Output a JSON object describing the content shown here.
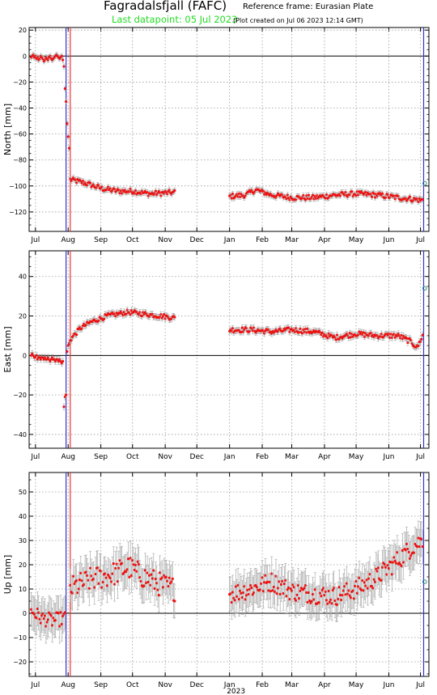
{
  "header": {
    "title": "Fagradalsfjall (FAFC)",
    "reference_frame": "Reference frame: Eurasian Plate",
    "last_datapoint": "Last datapoint: 05 Jul 2023",
    "plot_created": "(Plot created on Jul 06 2023 12:14 GMT)"
  },
  "colors": {
    "data_point": "#ee1111",
    "error_bar": "#aaaaaa",
    "blue_line": "#3333cc",
    "red_line": "#ee3333",
    "last_point": "#2e8b8b",
    "last_datapoint_text": "#22dd22",
    "grid": "#999999"
  },
  "chart_data": {
    "type": "scatter",
    "grid": true,
    "x_year_label": "2023",
    "months": [
      "Jul",
      "Aug",
      "Sep",
      "Oct",
      "Nov",
      "Dec",
      "Jan",
      "Feb",
      "Mar",
      "Apr",
      "May",
      "Jun",
      "Jul"
    ],
    "x_range": [
      "2022-06-25",
      "2023-07-09"
    ],
    "vertical_lines": [
      {
        "date": "2022-07-30",
        "color": "blue"
      },
      {
        "date": "2022-08-03",
        "color": "red"
      },
      {
        "date": "2023-07-04",
        "color": "blue"
      }
    ],
    "panels": [
      {
        "ylabel": "North [mm]",
        "ylim": [
          -135,
          22
        ],
        "yticks": [
          20,
          0,
          -20,
          -40,
          -60,
          -80,
          -100,
          -120
        ],
        "error": 2,
        "last_point": {
          "date": "2023-07-05",
          "value": -98
        },
        "segments": [
          {
            "start": "2022-06-27",
            "end": "2022-07-26",
            "values": [
              -1,
              0,
              1,
              -1,
              0,
              -2,
              -1,
              -3,
              -2,
              0,
              -1,
              -2,
              -4,
              -3,
              -1,
              -2,
              -3,
              -1,
              0,
              -2,
              -3,
              -2,
              -1,
              0,
              1,
              0,
              -1,
              -2,
              -1,
              0
            ]
          },
          {
            "start": "2022-07-27",
            "end": "2022-08-02",
            "values": [
              -3,
              -8,
              -25,
              -35,
              -52,
              -62,
              -71
            ]
          },
          {
            "start": "2022-08-03",
            "end": "2022-11-10",
            "interpolate": [
              [
                0,
                -95
              ],
              [
                15,
                -98
              ],
              [
                30,
                -102
              ],
              [
                45,
                -104
              ],
              [
                60,
                -104
              ],
              [
                75,
                -106
              ],
              [
                99,
                -105
              ]
            ],
            "noise": 2
          },
          {
            "start": "2023-01-01",
            "end": "2023-07-03",
            "interpolate": [
              [
                0,
                -108
              ],
              [
                15,
                -107
              ],
              [
                25,
                -103
              ],
              [
                40,
                -107
              ],
              [
                60,
                -109
              ],
              [
                80,
                -109
              ],
              [
                100,
                -107
              ],
              [
                120,
                -106
              ],
              [
                140,
                -107
              ],
              [
                160,
                -109
              ],
              [
                183,
                -111
              ]
            ],
            "noise": 2
          }
        ]
      },
      {
        "ylabel": "East [mm]",
        "ylim": [
          -47,
          53
        ],
        "yticks": [
          40,
          20,
          0,
          -20,
          -40
        ],
        "error": 1.5,
        "last_point": {
          "date": "2023-07-05",
          "value": 34
        },
        "segments": [
          {
            "start": "2022-06-27",
            "end": "2022-07-26",
            "values": [
              0,
              1,
              0,
              -1,
              -1,
              0,
              -2,
              -1,
              -1,
              -2,
              -1,
              -1,
              -2,
              -1,
              -2,
              -2,
              -1,
              -2,
              -3,
              -2,
              -1,
              -2,
              -2,
              -3,
              -2,
              -2,
              -3,
              -2,
              -3,
              -4
            ]
          },
          {
            "start": "2022-07-27",
            "end": "2022-08-02",
            "values": [
              -3,
              -26,
              -21,
              -20,
              2,
              5,
              6
            ]
          },
          {
            "start": "2022-08-03",
            "end": "2022-11-10",
            "interpolate": [
              [
                0,
                8
              ],
              [
                10,
                14
              ],
              [
                20,
                17
              ],
              [
                35,
                20
              ],
              [
                55,
                22
              ],
              [
                70,
                21
              ],
              [
                85,
                20
              ],
              [
                99,
                19
              ]
            ],
            "noise": 1.2
          },
          {
            "start": "2023-01-01",
            "end": "2023-07-03",
            "interpolate": [
              [
                0,
                13
              ],
              [
                20,
                13
              ],
              [
                40,
                12
              ],
              [
                60,
                13
              ],
              [
                80,
                12
              ],
              [
                100,
                9
              ],
              [
                120,
                11
              ],
              [
                140,
                10
              ],
              [
                160,
                10
              ],
              [
                172,
                7
              ],
              [
                178,
                4
              ],
              [
                183,
                10
              ]
            ],
            "noise": 1.3
          }
        ]
      },
      {
        "ylabel": "Up [mm]",
        "ylim": [
          -26,
          58
        ],
        "yticks": [
          50,
          40,
          30,
          20,
          10,
          0,
          -10,
          -20
        ],
        "error": 7,
        "last_point": {
          "date": "2023-07-05",
          "value": 13
        },
        "segments": [
          {
            "start": "2022-06-27",
            "end": "2022-07-29",
            "interpolate": [
              [
                0,
                1
              ],
              [
                10,
                -2
              ],
              [
                20,
                -3
              ],
              [
                32,
                -2
              ]
            ],
            "noise": 3
          },
          {
            "start": "2022-08-03",
            "end": "2022-11-10",
            "interpolate": [
              [
                0,
                10
              ],
              [
                20,
                14
              ],
              [
                40,
                16
              ],
              [
                55,
                19
              ],
              [
                70,
                15
              ],
              [
                85,
                12
              ],
              [
                99,
                10
              ]
            ],
            "noise": 5
          },
          {
            "start": "2023-01-01",
            "end": "2023-07-03",
            "interpolate": [
              [
                0,
                8
              ],
              [
                20,
                10
              ],
              [
                40,
                13
              ],
              [
                60,
                9
              ],
              [
                80,
                8
              ],
              [
                100,
                7
              ],
              [
                120,
                10
              ],
              [
                140,
                15
              ],
              [
                160,
                22
              ],
              [
                175,
                28
              ],
              [
                183,
                30
              ]
            ],
            "noise": 4
          }
        ]
      }
    ]
  }
}
